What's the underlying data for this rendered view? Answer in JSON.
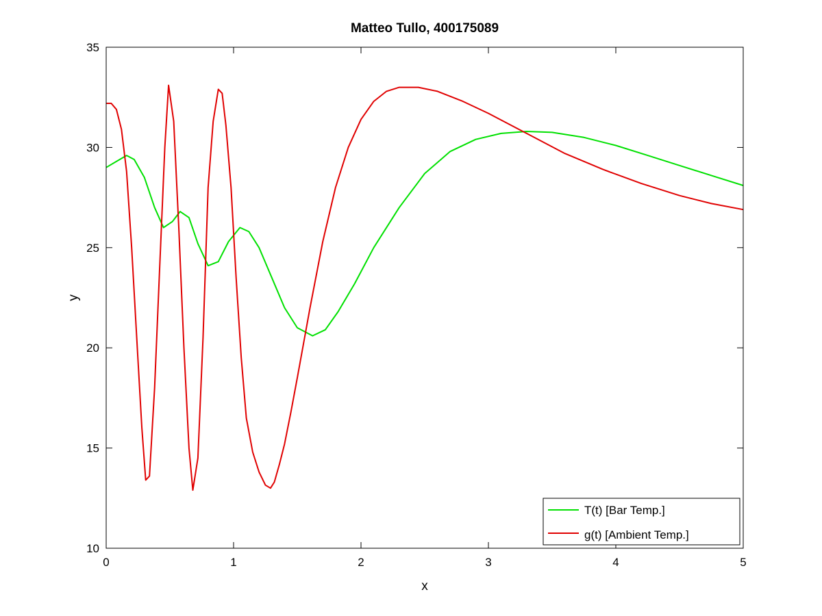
{
  "chart_data": {
    "type": "line",
    "title": "Matteo Tullo, 400175089",
    "xlabel": "x",
    "ylabel": "y",
    "xlim": [
      0,
      5
    ],
    "ylim": [
      10,
      35
    ],
    "xticks": [
      0,
      1,
      2,
      3,
      4,
      5
    ],
    "yticks": [
      10,
      15,
      20,
      25,
      30,
      35
    ],
    "grid": false,
    "legend_position": "bottom-right",
    "series": [
      {
        "name": "T(t) [Bar Temp.]",
        "color": "#00e000",
        "x": [
          0,
          0.08,
          0.16,
          0.22,
          0.3,
          0.38,
          0.45,
          0.52,
          0.58,
          0.65,
          0.72,
          0.8,
          0.88,
          0.96,
          1.05,
          1.12,
          1.2,
          1.3,
          1.4,
          1.5,
          1.62,
          1.72,
          1.82,
          1.95,
          2.1,
          2.3,
          2.5,
          2.7,
          2.9,
          3.1,
          3.3,
          3.5,
          3.75,
          4.0,
          4.25,
          4.5,
          4.75,
          5.0
        ],
        "y": [
          29.0,
          29.3,
          29.6,
          29.4,
          28.5,
          27.0,
          26.0,
          26.3,
          26.8,
          26.5,
          25.2,
          24.1,
          24.3,
          25.3,
          26.0,
          25.8,
          25.0,
          23.5,
          22.0,
          21.0,
          20.6,
          20.9,
          21.8,
          23.2,
          25.0,
          27.0,
          28.7,
          29.8,
          30.4,
          30.7,
          30.8,
          30.75,
          30.5,
          30.1,
          29.6,
          29.1,
          28.6,
          28.1
        ]
      },
      {
        "name": "g(t) [Ambient Temp.]",
        "color": "#e00000",
        "x": [
          0,
          0.04,
          0.08,
          0.12,
          0.16,
          0.2,
          0.24,
          0.28,
          0.31,
          0.34,
          0.38,
          0.42,
          0.46,
          0.49,
          0.53,
          0.57,
          0.61,
          0.65,
          0.68,
          0.72,
          0.76,
          0.8,
          0.84,
          0.88,
          0.91,
          0.94,
          0.98,
          1.02,
          1.06,
          1.1,
          1.15,
          1.2,
          1.25,
          1.29,
          1.32,
          1.36,
          1.4,
          1.45,
          1.5,
          1.6,
          1.7,
          1.8,
          1.9,
          2.0,
          2.1,
          2.2,
          2.3,
          2.45,
          2.6,
          2.8,
          3.0,
          3.3,
          3.6,
          3.9,
          4.2,
          4.5,
          4.75,
          5.0
        ],
        "y": [
          32.2,
          32.2,
          31.9,
          30.9,
          28.8,
          25.0,
          20.5,
          16.0,
          13.4,
          13.6,
          18.0,
          24.0,
          30.0,
          33.1,
          31.3,
          26.0,
          20.0,
          15.0,
          12.9,
          14.5,
          20.5,
          28.0,
          31.3,
          32.9,
          32.7,
          31.1,
          28.0,
          23.5,
          19.5,
          16.5,
          14.8,
          13.8,
          13.15,
          13.0,
          13.3,
          14.2,
          15.2,
          16.8,
          18.5,
          22.0,
          25.3,
          28.0,
          30.0,
          31.4,
          32.3,
          32.8,
          33.0,
          33.0,
          32.8,
          32.3,
          31.7,
          30.7,
          29.7,
          28.9,
          28.2,
          27.6,
          27.2,
          26.9
        ]
      }
    ]
  }
}
